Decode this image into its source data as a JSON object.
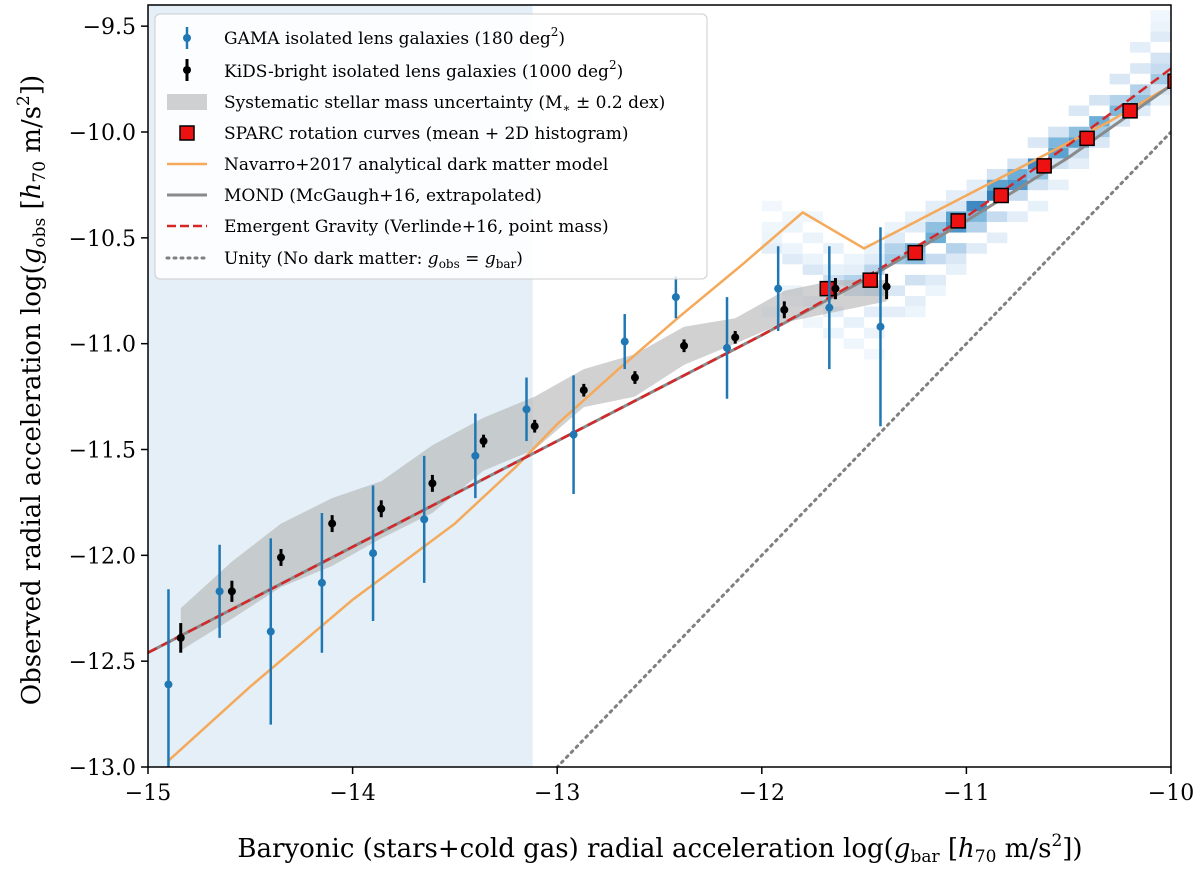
{
  "chart_data": {
    "type": "scatter",
    "xlabel": "Baryonic (stars+cold gas) radial acceleration log(g_bar [h_70 m/s^2])",
    "ylabel": "Observed radial acceleration log(g_obs [h_70 m/s^2])",
    "xlim": [
      -15,
      -10
    ],
    "ylim": [
      -13.0,
      -9.4
    ],
    "x_ticks": [
      -15,
      -14,
      -13,
      -12,
      -11,
      -10
    ],
    "y_ticks": [
      -13.0,
      -12.5,
      -12.0,
      -11.5,
      -11.0,
      -10.5,
      -10.0,
      -9.5
    ],
    "x_tick_labels": [
      "−15",
      "−14",
      "−13",
      "−12",
      "−11",
      "−10"
    ],
    "y_tick_labels": [
      "−13.0",
      "−12.5",
      "−12.0",
      "−11.5",
      "−11.0",
      "−10.5",
      "−10.0",
      "−9.5"
    ],
    "shaded_region": {
      "x_start": -15,
      "x_end": -13.12,
      "color": "#e4eff7"
    },
    "legend": [
      {
        "key": "gama",
        "label": "GAMA isolated lens galaxies (180 deg²)"
      },
      {
        "key": "kids",
        "label": "KiDS-bright isolated lens galaxies (1000 deg²)"
      },
      {
        "key": "band",
        "label": "Systematic stellar mass uncertainty (M∗ ± 0.2 dex)"
      },
      {
        "key": "sparc",
        "label": "SPARC rotation curves (mean + 2D histogram)"
      },
      {
        "key": "navarro",
        "label": "Navarro+2017 analytical dark matter model"
      },
      {
        "key": "mond",
        "label": "MOND (McGaugh+16, extrapolated)"
      },
      {
        "key": "eg",
        "label": "Emergent Gravity (Verlinde+16, point mass)"
      },
      {
        "key": "unity",
        "label": "Unity (No dark matter: g_obs = g_bar)"
      }
    ],
    "series": [
      {
        "name": "GAMA isolated lens galaxies",
        "color": "#1f77b4",
        "x": [
          -14.9,
          -14.65,
          -14.4,
          -14.15,
          -13.9,
          -13.65,
          -13.4,
          -13.15,
          -12.92,
          -12.67,
          -12.42,
          -12.17,
          -11.92,
          -11.67,
          -11.42
        ],
        "y": [
          -12.61,
          -12.17,
          -12.36,
          -12.13,
          -11.99,
          -11.83,
          -11.53,
          -11.31,
          -11.43,
          -10.99,
          -10.78,
          -11.02,
          -10.74,
          -10.83,
          -10.92
        ],
        "yerr": [
          0.45,
          0.22,
          0.44,
          0.33,
          0.32,
          0.3,
          0.2,
          0.15,
          0.28,
          0.13,
          0.1,
          0.24,
          0.2,
          0.29,
          0.47
        ]
      },
      {
        "name": "KiDS-bright isolated lens galaxies",
        "color": "#000000",
        "x": [
          -14.84,
          -14.59,
          -14.35,
          -14.1,
          -13.86,
          -13.61,
          -13.36,
          -13.11,
          -12.87,
          -12.62,
          -12.38,
          -12.13,
          -11.89,
          -11.64,
          -11.39
        ],
        "y": [
          -12.39,
          -12.17,
          -12.01,
          -11.85,
          -11.78,
          -11.66,
          -11.46,
          -11.39,
          -11.22,
          -11.16,
          -11.01,
          -10.97,
          -10.84,
          -10.74,
          -10.73
        ],
        "yerr": [
          0.07,
          0.05,
          0.04,
          0.04,
          0.04,
          0.04,
          0.03,
          0.03,
          0.03,
          0.03,
          0.03,
          0.03,
          0.04,
          0.05,
          0.06
        ]
      },
      {
        "name": "Systematic stellar mass uncertainty band",
        "color": "#b3b3b3",
        "x": [
          -14.84,
          -14.59,
          -14.35,
          -14.1,
          -13.86,
          -13.61,
          -13.36,
          -13.11,
          -12.87,
          -12.62,
          -12.38,
          -12.13,
          -11.89,
          -11.64,
          -11.39
        ],
        "lower": [
          -12.45,
          -12.3,
          -12.15,
          -12.05,
          -11.92,
          -11.8,
          -11.6,
          -11.5,
          -11.3,
          -11.25,
          -11.1,
          -11.0,
          -10.9,
          -10.85,
          -10.8
        ],
        "upper": [
          -12.25,
          -12.03,
          -11.85,
          -11.73,
          -11.65,
          -11.48,
          -11.35,
          -11.25,
          -11.12,
          -11.05,
          -10.92,
          -10.88,
          -10.75,
          -10.7,
          -10.7
        ]
      },
      {
        "name": "SPARC rotation curves (mean)",
        "color": "#ee1111",
        "x": [
          -11.68,
          -11.47,
          -11.25,
          -11.04,
          -10.83,
          -10.62,
          -10.41,
          -10.2,
          -9.98
        ],
        "y": [
          -10.74,
          -10.7,
          -10.57,
          -10.42,
          -10.3,
          -10.16,
          -10.03,
          -9.9,
          -9.76
        ]
      },
      {
        "name": "Navarro+2017 analytical dark matter model",
        "color": "#f5a95a",
        "x": [
          -14.9,
          -14.5,
          -14.0,
          -13.5,
          -13.2,
          -13.0,
          -12.7,
          -12.4,
          -12.1,
          -11.8,
          -11.5,
          -11.2,
          -10.9,
          -10.6,
          -10.3,
          -10.0
        ],
        "y": [
          -12.97,
          -12.62,
          -12.21,
          -11.85,
          -11.58,
          -11.38,
          -11.12,
          -10.87,
          -10.63,
          -10.38,
          -10.55,
          -10.4,
          -10.25,
          -10.1,
          -9.95,
          -9.78
        ]
      },
      {
        "name": "MOND (McGaugh+16, extrapolated)",
        "color": "#8a8a8a",
        "x": [
          -15,
          -14.5,
          -14.0,
          -13.5,
          -13.0,
          -12.5,
          -12.0,
          -11.5,
          -11.0,
          -10.5,
          -10.0
        ],
        "y": [
          -12.46,
          -12.21,
          -11.96,
          -11.71,
          -11.46,
          -11.21,
          -10.96,
          -10.7,
          -10.42,
          -10.12,
          -9.78
        ]
      },
      {
        "name": "Emergent Gravity (Verlinde+16, point mass)",
        "color": "#d62728",
        "x": [
          -15,
          -14.5,
          -14.0,
          -13.5,
          -13.0,
          -12.5,
          -12.0,
          -11.5,
          -11.0,
          -10.5,
          -10.0
        ],
        "y": [
          -12.46,
          -12.21,
          -11.96,
          -11.71,
          -11.46,
          -11.21,
          -10.96,
          -10.69,
          -10.4,
          -10.06,
          -9.7
        ]
      },
      {
        "name": "Unity (No dark matter)",
        "color": "#808080",
        "x": [
          -13.05,
          -10.0
        ],
        "y": [
          -13.05,
          -10.0
        ]
      }
    ],
    "histogram2d": {
      "name": "SPARC 2D histogram",
      "colormap": "Blues",
      "cell_dx": 0.1,
      "cell_dy": 0.05,
      "cells": [
        [
          -11.95,
          -10.55,
          0.1
        ],
        [
          -11.85,
          -10.6,
          0.12
        ],
        [
          -11.75,
          -10.65,
          0.15
        ],
        [
          -11.65,
          -10.7,
          0.22
        ],
        [
          -11.55,
          -10.7,
          0.3
        ],
        [
          -11.55,
          -10.75,
          0.25
        ],
        [
          -11.45,
          -10.65,
          0.28
        ],
        [
          -11.45,
          -10.75,
          0.3
        ],
        [
          -11.35,
          -10.6,
          0.35
        ],
        [
          -11.35,
          -10.55,
          0.3
        ],
        [
          -11.25,
          -10.55,
          0.45
        ],
        [
          -11.25,
          -10.6,
          0.4
        ],
        [
          -11.15,
          -10.5,
          0.5
        ],
        [
          -11.15,
          -10.45,
          0.4
        ],
        [
          -11.05,
          -10.45,
          0.6
        ],
        [
          -11.05,
          -10.4,
          0.55
        ],
        [
          -10.95,
          -10.35,
          0.65
        ],
        [
          -10.95,
          -10.4,
          0.45
        ],
        [
          -10.85,
          -10.3,
          0.7
        ],
        [
          -10.85,
          -10.25,
          0.55
        ],
        [
          -10.75,
          -10.25,
          0.6
        ],
        [
          -10.75,
          -10.2,
          0.5
        ],
        [
          -10.65,
          -10.15,
          0.65
        ],
        [
          -10.65,
          -10.2,
          0.4
        ],
        [
          -10.55,
          -10.1,
          0.55
        ],
        [
          -10.55,
          -10.05,
          0.45
        ],
        [
          -10.45,
          -10.05,
          0.55
        ],
        [
          -10.45,
          -10.0,
          0.4
        ],
        [
          -10.35,
          -9.95,
          0.5
        ],
        [
          -10.35,
          -10.0,
          0.35
        ],
        [
          -10.25,
          -9.9,
          0.45
        ],
        [
          -10.25,
          -9.85,
          0.3
        ],
        [
          -10.15,
          -9.85,
          0.4
        ],
        [
          -10.15,
          -9.8,
          0.3
        ],
        [
          -10.05,
          -9.75,
          0.35
        ],
        [
          -10.05,
          -9.7,
          0.25
        ],
        [
          -10.05,
          -9.65,
          0.18
        ],
        [
          -10.05,
          -9.55,
          0.12
        ],
        [
          -10.15,
          -9.6,
          0.1
        ],
        [
          -10.15,
          -9.7,
          0.15
        ],
        [
          -10.25,
          -9.75,
          0.15
        ],
        [
          -10.35,
          -9.85,
          0.18
        ],
        [
          -10.45,
          -9.9,
          0.15
        ],
        [
          -10.45,
          -10.1,
          0.2
        ],
        [
          -10.55,
          -10.0,
          0.18
        ],
        [
          -10.65,
          -10.05,
          0.15
        ],
        [
          -10.75,
          -10.15,
          0.18
        ],
        [
          -10.85,
          -10.2,
          0.18
        ],
        [
          -10.95,
          -10.3,
          0.15
        ],
        [
          -11.05,
          -10.35,
          0.15
        ],
        [
          -11.15,
          -10.4,
          0.15
        ],
        [
          -11.25,
          -10.45,
          0.12
        ],
        [
          -11.35,
          -10.5,
          0.12
        ],
        [
          -11.45,
          -10.6,
          0.12
        ],
        [
          -11.55,
          -10.65,
          0.1
        ],
        [
          -11.65,
          -10.65,
          0.08
        ],
        [
          -11.75,
          -10.6,
          0.06
        ],
        [
          -11.85,
          -10.55,
          0.05
        ],
        [
          -11.95,
          -10.5,
          0.05
        ],
        [
          -11.95,
          -10.45,
          0.04
        ],
        [
          -11.85,
          -10.75,
          0.06
        ],
        [
          -11.75,
          -10.8,
          0.08
        ],
        [
          -11.65,
          -10.85,
          0.1
        ],
        [
          -11.55,
          -10.9,
          0.08
        ],
        [
          -11.45,
          -10.85,
          0.1
        ],
        [
          -11.45,
          -10.95,
          0.06
        ],
        [
          -11.35,
          -10.75,
          0.15
        ],
        [
          -11.35,
          -10.85,
          0.1
        ],
        [
          -11.25,
          -10.7,
          0.2
        ],
        [
          -11.25,
          -10.8,
          0.1
        ],
        [
          -11.15,
          -10.6,
          0.25
        ],
        [
          -11.15,
          -10.7,
          0.12
        ],
        [
          -11.05,
          -10.55,
          0.3
        ],
        [
          -11.05,
          -10.6,
          0.15
        ],
        [
          -10.95,
          -10.45,
          0.3
        ],
        [
          -10.95,
          -10.55,
          0.12
        ],
        [
          -10.85,
          -10.4,
          0.25
        ],
        [
          -10.85,
          -10.5,
          0.1
        ],
        [
          -10.75,
          -10.3,
          0.25
        ],
        [
          -10.75,
          -10.4,
          0.1
        ],
        [
          -10.65,
          -10.25,
          0.2
        ],
        [
          -10.65,
          -10.35,
          0.08
        ],
        [
          -10.55,
          -10.15,
          0.2
        ],
        [
          -10.55,
          -10.25,
          0.08
        ],
        [
          -10.45,
          -10.15,
          0.1
        ],
        [
          -10.35,
          -10.05,
          0.15
        ],
        [
          -10.25,
          -9.95,
          0.15
        ],
        [
          -10.15,
          -9.9,
          0.12
        ],
        [
          -10.05,
          -9.8,
          0.15
        ],
        [
          -10.05,
          -9.85,
          0.08
        ],
        [
          -10.05,
          -9.5,
          0.06
        ],
        [
          -10.05,
          -9.45,
          0.04
        ],
        [
          -11.05,
          -10.3,
          0.1
        ],
        [
          -11.15,
          -10.35,
          0.1
        ],
        [
          -10.95,
          -10.25,
          0.1
        ],
        [
          -11.25,
          -10.4,
          0.08
        ],
        [
          -11.35,
          -10.45,
          0.06
        ],
        [
          -11.45,
          -10.55,
          0.06
        ],
        [
          -11.55,
          -10.6,
          0.05
        ],
        [
          -11.85,
          -10.8,
          0.04
        ],
        [
          -11.95,
          -10.85,
          0.03
        ],
        [
          -11.75,
          -10.9,
          0.04
        ],
        [
          -11.65,
          -10.95,
          0.05
        ],
        [
          -11.55,
          -11.0,
          0.04
        ],
        [
          -11.45,
          -11.05,
          0.03
        ],
        [
          -11.85,
          -10.45,
          0.05
        ],
        [
          -11.75,
          -10.5,
          0.06
        ],
        [
          -11.65,
          -10.55,
          0.08
        ],
        [
          -11.95,
          -10.35,
          0.03
        ],
        [
          -11.85,
          -10.4,
          0.04
        ],
        [
          -11.75,
          -10.4,
          0.04
        ],
        [
          -11.05,
          -10.65,
          0.08
        ],
        [
          -11.15,
          -10.75,
          0.05
        ],
        [
          -11.25,
          -10.85,
          0.05
        ]
      ]
    }
  }
}
